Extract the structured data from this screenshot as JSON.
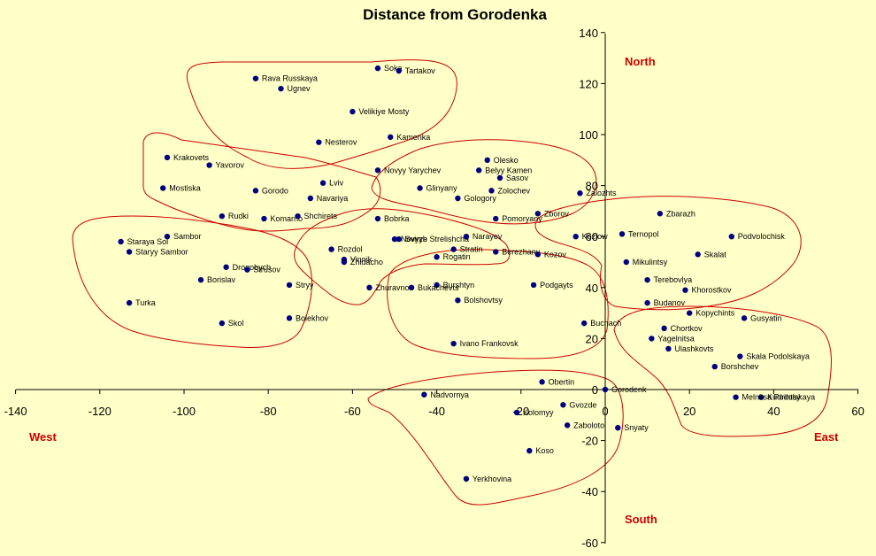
{
  "chart_data": {
    "type": "scatter",
    "title": "Distance from Gorodenka",
    "xlim": [
      -140,
      60
    ],
    "ylim": [
      -60,
      140
    ],
    "x_ticks": [
      "-140",
      "-120",
      "-100",
      "-80",
      "-60",
      "-40",
      "-20",
      "0",
      "20",
      "40",
      "60"
    ],
    "y_ticks": [
      "140",
      "120",
      "100",
      "80",
      "60",
      "40",
      "20",
      "0",
      "-20",
      "-40",
      "-60"
    ],
    "direction_labels": {
      "north": "North",
      "south": "South",
      "west": "West",
      "east": "East"
    },
    "colors": {
      "point": "#000080",
      "region": "#cc0000",
      "background": "#ffffc8",
      "direction": "#cc0000"
    },
    "points": [
      {
        "name": "Soka",
        "x": -54,
        "y": 126
      },
      {
        "name": "Tartakov",
        "x": -49,
        "y": 125
      },
      {
        "name": "Rava Russkaya",
        "x": -83,
        "y": 122
      },
      {
        "name": "Ugnev",
        "x": -77,
        "y": 118
      },
      {
        "name": "Velikiye Mosty",
        "x": -60,
        "y": 109
      },
      {
        "name": "Kamenka",
        "x": -51,
        "y": 99
      },
      {
        "name": "Nesterov",
        "x": -68,
        "y": 97
      },
      {
        "name": "Krakovets",
        "x": -104,
        "y": 91
      },
      {
        "name": "Yavorov",
        "x": -94,
        "y": 88
      },
      {
        "name": "Novyy Yarychev",
        "x": -54,
        "y": 86
      },
      {
        "name": "Belyy Kamen",
        "x": -30,
        "y": 86
      },
      {
        "name": "Olesko",
        "x": -28,
        "y": 90
      },
      {
        "name": "Sasov",
        "x": -25,
        "y": 83
      },
      {
        "name": "Lviv",
        "x": -67,
        "y": 81
      },
      {
        "name": "Mostiska",
        "x": -105,
        "y": 79
      },
      {
        "name": "Gorodo",
        "x": -83,
        "y": 78
      },
      {
        "name": "Navariya",
        "x": -70,
        "y": 75
      },
      {
        "name": "Glinyany",
        "x": -44,
        "y": 79
      },
      {
        "name": "Gologory",
        "x": -35,
        "y": 75
      },
      {
        "name": "Zolochev",
        "x": -27,
        "y": 78
      },
      {
        "name": "Zalozhts",
        "x": -6,
        "y": 77
      },
      {
        "name": "Rudki",
        "x": -91,
        "y": 68
      },
      {
        "name": "Komarno",
        "x": -81,
        "y": 67
      },
      {
        "name": "Shchirets",
        "x": -73,
        "y": 68
      },
      {
        "name": "Bobrka",
        "x": -54,
        "y": 67
      },
      {
        "name": "Pomoryany",
        "x": -26,
        "y": 67
      },
      {
        "name": "Zborov",
        "x": -16,
        "y": 69
      },
      {
        "name": "Zbarazh",
        "x": 13,
        "y": 69
      },
      {
        "name": "Sambor",
        "x": -104,
        "y": 60
      },
      {
        "name": "Staraya Sol",
        "x": -115,
        "y": 58
      },
      {
        "name": "Staryy Sambor",
        "x": -113,
        "y": 54
      },
      {
        "name": "Novyye Strelishcha",
        "x": -50,
        "y": 59
      },
      {
        "name": "Svirzh",
        "x": -49,
        "y": 59
      },
      {
        "name": "Narayev",
        "x": -33,
        "y": 60
      },
      {
        "name": "Kozlow",
        "x": -7,
        "y": 60
      },
      {
        "name": "Ternopol",
        "x": 4,
        "y": 61
      },
      {
        "name": "Podvolochisk",
        "x": 30,
        "y": 60
      },
      {
        "name": "Rozdol",
        "x": -65,
        "y": 55
      },
      {
        "name": "Stratin",
        "x": -36,
        "y": 55
      },
      {
        "name": "Berezhany",
        "x": -26,
        "y": 54
      },
      {
        "name": "Skalat",
        "x": 22,
        "y": 53
      },
      {
        "name": "Rogatin",
        "x": -40,
        "y": 52
      },
      {
        "name": "Kozov",
        "x": -16,
        "y": 53
      },
      {
        "name": "Vinnik",
        "x": -62,
        "y": 51
      },
      {
        "name": "Zhidacho",
        "x": -62,
        "y": 50
      },
      {
        "name": "Mikulintsy",
        "x": 5,
        "y": 50
      },
      {
        "name": "Drogobych",
        "x": -90,
        "y": 48
      },
      {
        "name": "Strusov",
        "x": -85,
        "y": 47
      },
      {
        "name": "Terebovlya",
        "x": 10,
        "y": 43
      },
      {
        "name": "Borislav",
        "x": -96,
        "y": 43
      },
      {
        "name": "Stryy",
        "x": -75,
        "y": 41
      },
      {
        "name": "Burshtyn",
        "x": -40,
        "y": 41
      },
      {
        "name": "Podgayts",
        "x": -17,
        "y": 41
      },
      {
        "name": "Zhuravno",
        "x": -56,
        "y": 40
      },
      {
        "name": "Bukachevts",
        "x": -46,
        "y": 40
      },
      {
        "name": "Khorostkov",
        "x": 19,
        "y": 39
      },
      {
        "name": "Turka",
        "x": -113,
        "y": 34
      },
      {
        "name": "Bolshovtsy",
        "x": -35,
        "y": 35
      },
      {
        "name": "Budanov",
        "x": 10,
        "y": 34
      },
      {
        "name": "Kopychints",
        "x": 20,
        "y": 30
      },
      {
        "name": "Bolekhov",
        "x": -75,
        "y": 28
      },
      {
        "name": "Gusyatin",
        "x": 33,
        "y": 28
      },
      {
        "name": "Skol",
        "x": -91,
        "y": 26
      },
      {
        "name": "Buchach",
        "x": -5,
        "y": 26
      },
      {
        "name": "Chortkov",
        "x": 14,
        "y": 24
      },
      {
        "name": "Yagelnitsa",
        "x": 11,
        "y": 20
      },
      {
        "name": "Ivano Frankovsk",
        "x": -36,
        "y": 18
      },
      {
        "name": "Ulashkovts",
        "x": 15,
        "y": 16
      },
      {
        "name": "Skala Podolskaya",
        "x": 32,
        "y": 13
      },
      {
        "name": "Borshchev",
        "x": 26,
        "y": 9
      },
      {
        "name": "Obertin",
        "x": -15,
        "y": 3
      },
      {
        "name": "Gorodenk",
        "x": 0,
        "y": 0
      },
      {
        "name": "Nadvornya",
        "x": -43,
        "y": -2
      },
      {
        "name": "Kudrintsy",
        "x": 37,
        "y": -3
      },
      {
        "name": "Melnitsa Podolskaya",
        "x": 31,
        "y": -3
      },
      {
        "name": "Gvozde",
        "x": -10,
        "y": -6
      },
      {
        "name": "Kolomyy",
        "x": -21,
        "y": -9
      },
      {
        "name": "Zaboloto",
        "x": -9,
        "y": -14
      },
      {
        "name": "Snyaty",
        "x": 3,
        "y": -15
      },
      {
        "name": "Koso",
        "x": -18,
        "y": -24
      },
      {
        "name": "Yerkhovina",
        "x": -33,
        "y": -35
      }
    ]
  }
}
